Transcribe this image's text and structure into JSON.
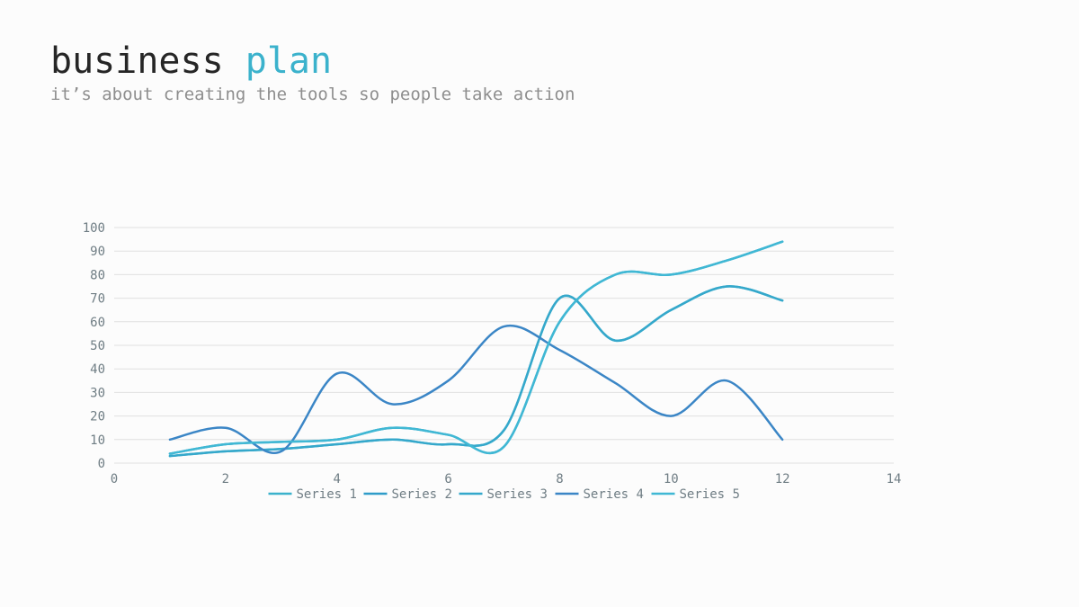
{
  "slide": {
    "title_main": "business",
    "title_accent": "plan",
    "subtitle": "it’s about creating the tools so people take action"
  },
  "chart_data": {
    "type": "line",
    "smooth": true,
    "xlim": [
      0,
      14
    ],
    "ylim": [
      0,
      100
    ],
    "x_ticks": [
      0,
      2,
      4,
      6,
      8,
      10,
      12,
      14
    ],
    "y_ticks": [
      0,
      10,
      20,
      30,
      40,
      50,
      60,
      70,
      80,
      90,
      100
    ],
    "grid": "horizontal",
    "legend": "bottom",
    "series": [
      {
        "name": "Series 1",
        "color": "#3bb2cc",
        "x": [
          1,
          2,
          3,
          4,
          5,
          6,
          7,
          8,
          9,
          10,
          11,
          12
        ],
        "y": [
          3,
          5,
          6,
          8,
          10,
          8,
          14,
          70,
          52,
          65,
          75,
          69
        ]
      },
      {
        "name": "Series 2",
        "color": "#2f9cc9",
        "x": [
          1,
          2,
          3,
          4,
          5,
          6,
          7,
          8,
          9,
          10,
          11,
          12
        ],
        "y": [
          4,
          8,
          9,
          10,
          15,
          12,
          7,
          60,
          80,
          80,
          86,
          94
        ]
      },
      {
        "name": "Series 3",
        "color": "#35a8cb",
        "x": [
          1,
          2,
          3,
          4,
          5,
          6,
          7,
          8,
          9,
          10,
          11,
          12
        ],
        "y": [
          3,
          5,
          6,
          8,
          10,
          8,
          14,
          70,
          52,
          65,
          75,
          69
        ]
      },
      {
        "name": "Series 4",
        "color": "#3b86c6",
        "x": [
          1,
          2,
          3,
          4,
          5,
          6,
          7,
          8,
          9,
          10,
          11,
          12
        ],
        "y": [
          10,
          15,
          5,
          38,
          25,
          35,
          58,
          48,
          34,
          20,
          35,
          10
        ]
      },
      {
        "name": "Series 5",
        "color": "#40b8d4",
        "x": [
          1,
          2,
          3,
          4,
          5,
          6,
          7,
          8,
          9,
          10,
          11,
          12
        ],
        "y": [
          4,
          8,
          9,
          10,
          15,
          12,
          7,
          60,
          80,
          80,
          86,
          94
        ]
      }
    ]
  }
}
